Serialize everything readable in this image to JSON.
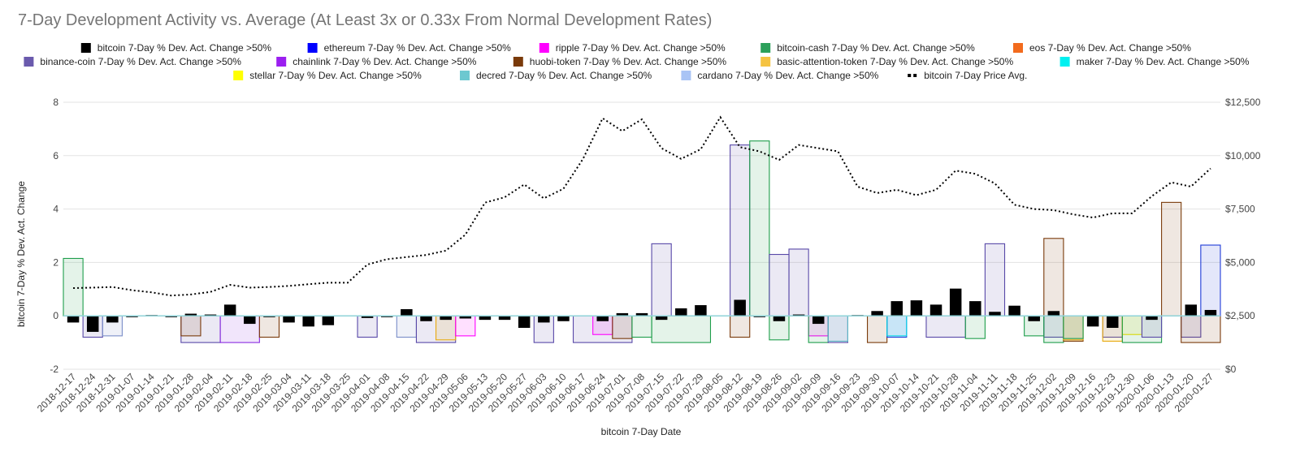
{
  "chart_data": {
    "type": "bar",
    "title": "7-Day Development Activity vs. Average (At Least 3x or 0.33x From Normal Development Rates)",
    "xlabel": "bitcoin 7-Day Date",
    "ylabel": "bitcoin 7-Day % Dev. Act. Change",
    "ylim": [
      -2,
      8
    ],
    "y_ticks": [
      "-2",
      "0",
      "2",
      "4",
      "6",
      "8"
    ],
    "y2lim": [
      0,
      12500
    ],
    "y2_ticks": [
      "$0",
      "$2,500",
      "$5,000",
      "$7,500",
      "$10,000",
      "$12,500"
    ],
    "dates": [
      "2018-12-17",
      "2018-12-24",
      "2018-12-31",
      "2019-01-07",
      "2019-01-14",
      "2019-01-21",
      "2019-01-28",
      "2019-02-04",
      "2019-02-11",
      "2019-02-18",
      "2019-02-25",
      "2019-03-04",
      "2019-03-11",
      "2019-03-18",
      "2019-03-25",
      "2019-04-01",
      "2019-04-08",
      "2019-04-15",
      "2019-04-22",
      "2019-04-29",
      "2019-05-06",
      "2019-05-13",
      "2019-05-20",
      "2019-05-27",
      "2019-06-03",
      "2019-06-10",
      "2019-06-17",
      "2019-06-24",
      "2019-07-01",
      "2019-07-08",
      "2019-07-15",
      "2019-07-22",
      "2019-07-29",
      "2019-08-05",
      "2019-08-12",
      "2019-08-19",
      "2019-08-26",
      "2019-09-02",
      "2019-09-09",
      "2019-09-16",
      "2019-09-23",
      "2019-09-30",
      "2019-10-07",
      "2019-10-14",
      "2019-10-21",
      "2019-10-28",
      "2019-11-04",
      "2019-11-11",
      "2019-11-18",
      "2019-11-25",
      "2019-12-02",
      "2019-12-09",
      "2019-12-16",
      "2019-12-23",
      "2019-12-30",
      "2020-01-06",
      "2020-01-13",
      "2020-01-20",
      "2020-01-27"
    ],
    "bitcoin_values": [
      -0.25,
      -0.6,
      -0.25,
      -0.05,
      0.03,
      -0.05,
      0.08,
      0.05,
      0.42,
      -0.3,
      -0.05,
      -0.25,
      -0.4,
      -0.35,
      0,
      -0.08,
      -0.05,
      0.25,
      -0.2,
      -0.15,
      -0.1,
      -0.15,
      -0.15,
      -0.45,
      -0.25,
      -0.2,
      0,
      -0.2,
      0.1,
      0.1,
      -0.15,
      0.28,
      0.4,
      0,
      0.6,
      -0.05,
      -0.2,
      0.05,
      -0.3,
      0,
      0.03,
      0.18,
      0.55,
      0.58,
      0.42,
      1.02,
      0.55,
      0.15,
      0.38,
      -0.2,
      0.18,
      0,
      -0.4,
      -0.45,
      0,
      -0.15,
      0,
      0.42,
      0.22
    ],
    "price_series": {
      "name": "bitcoin 7-Day Price Avg.",
      "values": [
        3800,
        3820,
        3850,
        3700,
        3600,
        3450,
        3500,
        3620,
        3950,
        3820,
        3850,
        3900,
        3980,
        4050,
        4050,
        4900,
        5150,
        5250,
        5350,
        5550,
        6300,
        7800,
        8050,
        8650,
        8000,
        8450,
        9850,
        11750,
        11150,
        11700,
        10350,
        9850,
        10300,
        11800,
        10400,
        10200,
        9800,
        10500,
        10350,
        10200,
        8550,
        8250,
        8400,
        8150,
        8400,
        9300,
        9150,
        8700,
        7700,
        7500,
        7450,
        7250,
        7100,
        7300,
        7300,
        8100,
        8750,
        8550,
        9400
      ]
    },
    "bands": [
      {
        "series": "bitcoin-cash",
        "color": "#1E9E4B",
        "start": 0,
        "end": 1,
        "value": 2.15
      },
      {
        "series": "binance-coin",
        "color": "#5848A8",
        "start": 1,
        "end": 2,
        "value": -0.8
      },
      {
        "series": "cardano",
        "color": "#7A8EC8",
        "start": 2,
        "end": 3,
        "value": -0.75
      },
      {
        "series": "binance-coin",
        "color": "#5848A8",
        "start": 6,
        "end": 8,
        "value": -1.0
      },
      {
        "series": "huobi-token",
        "color": "#7A3A0A",
        "start": 6,
        "end": 7,
        "value": -0.75
      },
      {
        "series": "chainlink",
        "color": "#8A2BE2",
        "start": 8,
        "end": 10,
        "value": -1.0
      },
      {
        "series": "huobi-token",
        "color": "#7A3A0A",
        "start": 10,
        "end": 11,
        "value": -0.8
      },
      {
        "series": "binance-coin",
        "color": "#5848A8",
        "start": 15,
        "end": 16,
        "value": -0.8
      },
      {
        "series": "cardano",
        "color": "#7A8EC8",
        "start": 17,
        "end": 18,
        "value": -0.8
      },
      {
        "series": "binance-coin",
        "color": "#5848A8",
        "start": 18,
        "end": 20,
        "value": -1.0
      },
      {
        "series": "basic-attention-token",
        "color": "#E8A90C",
        "start": 19,
        "end": 20,
        "value": -0.9
      },
      {
        "series": "ripple",
        "color": "#FF00FF",
        "start": 20,
        "end": 21,
        "value": -0.75
      },
      {
        "series": "binance-coin",
        "color": "#5848A8",
        "start": 24,
        "end": 25,
        "value": -1.0
      },
      {
        "series": "binance-coin",
        "color": "#5848A8",
        "start": 26,
        "end": 29,
        "value": -1.0
      },
      {
        "series": "ripple",
        "color": "#FF00FF",
        "start": 27,
        "end": 28,
        "value": -0.7
      },
      {
        "series": "huobi-token",
        "color": "#7A3A0A",
        "start": 28,
        "end": 29,
        "value": -0.85
      },
      {
        "series": "bitcoin-cash",
        "color": "#1E9E4B",
        "start": 29,
        "end": 30,
        "value": -0.8
      },
      {
        "series": "binance-coin",
        "color": "#5848A8",
        "start": 30,
        "end": 31,
        "value": 2.7
      },
      {
        "series": "bitcoin-cash",
        "color": "#1E9E4B",
        "start": 30,
        "end": 33,
        "value": -1.0
      },
      {
        "series": "huobi-token",
        "color": "#7A3A0A",
        "start": 34,
        "end": 35,
        "value": -0.8
      },
      {
        "series": "binance-coin",
        "color": "#5848A8",
        "start": 34,
        "end": 35,
        "value": 6.4
      },
      {
        "series": "bitcoin-cash",
        "color": "#1E9E4B",
        "start": 35,
        "end": 36,
        "value": 6.55
      },
      {
        "series": "bitcoin-cash",
        "color": "#1E9E4B",
        "start": 36,
        "end": 37,
        "value": -0.9
      },
      {
        "series": "binance-coin",
        "color": "#5848A8",
        "start": 36,
        "end": 37,
        "value": 2.3
      },
      {
        "series": "binance-coin",
        "color": "#5848A8",
        "start": 37,
        "end": 38,
        "value": 2.5
      },
      {
        "series": "ripple",
        "color": "#FF00FF",
        "start": 38,
        "end": 39,
        "value": -0.75
      },
      {
        "series": "bitcoin-cash",
        "color": "#1E9E4B",
        "start": 38,
        "end": 39,
        "value": -1.0
      },
      {
        "series": "binance-coin",
        "color": "#5848A8",
        "start": 39,
        "end": 40,
        "value": -1.0
      },
      {
        "series": "decred",
        "color": "#5CB8C4",
        "start": 39,
        "end": 40,
        "value": -0.95
      },
      {
        "series": "huobi-token",
        "color": "#7A3A0A",
        "start": 41,
        "end": 42,
        "value": -1.0
      },
      {
        "series": "ethereum",
        "color": "#1F3BD8",
        "start": 42,
        "end": 43,
        "value": -0.8
      },
      {
        "series": "maker",
        "color": "#00D8E8",
        "start": 42,
        "end": 43,
        "value": -0.75
      },
      {
        "series": "binance-coin",
        "color": "#5848A8",
        "start": 44,
        "end": 46,
        "value": -0.8
      },
      {
        "series": "bitcoin-cash",
        "color": "#1E9E4B",
        "start": 46,
        "end": 47,
        "value": -0.85
      },
      {
        "series": "binance-coin",
        "color": "#5848A8",
        "start": 47,
        "end": 48,
        "value": 2.7
      },
      {
        "series": "bitcoin-cash",
        "color": "#1E9E4B",
        "start": 49,
        "end": 50,
        "value": -0.75
      },
      {
        "series": "huobi-token",
        "color": "#7A3A0A",
        "start": 50,
        "end": 51,
        "value": 2.9
      },
      {
        "series": "binance-coin",
        "color": "#5848A8",
        "start": 50,
        "end": 51,
        "value": -0.8
      },
      {
        "series": "bitcoin-cash",
        "color": "#1E9E4B",
        "start": 50,
        "end": 51,
        "value": -1.0
      },
      {
        "series": "huobi-token",
        "color": "#7A3A0A",
        "start": 51,
        "end": 52,
        "value": -0.95
      },
      {
        "series": "basic-attention-token",
        "color": "#E8A90C",
        "start": 51,
        "end": 52,
        "value": -0.9
      },
      {
        "series": "bitcoin-cash",
        "color": "#1E9E4B",
        "start": 51,
        "end": 52,
        "value": -0.85
      },
      {
        "series": "binance-coin",
        "color": "#5848A8",
        "start": 53,
        "end": 54,
        "value": -0.8
      },
      {
        "series": "basic-attention-token",
        "color": "#E8A90C",
        "start": 53,
        "end": 54,
        "value": -0.95
      },
      {
        "series": "stellar",
        "color": "#F0E000",
        "start": 54,
        "end": 55,
        "value": -0.7
      },
      {
        "series": "bitcoin-cash",
        "color": "#1E9E4B",
        "start": 54,
        "end": 56,
        "value": -1.0
      },
      {
        "series": "binance-coin",
        "color": "#5848A8",
        "start": 55,
        "end": 56,
        "value": -0.8
      },
      {
        "series": "huobi-token",
        "color": "#7A3A0A",
        "start": 56,
        "end": 57,
        "value": 4.25
      },
      {
        "series": "binance-coin",
        "color": "#5848A8",
        "start": 57,
        "end": 58,
        "value": -0.8
      },
      {
        "series": "huobi-token",
        "color": "#7A3A0A",
        "start": 57,
        "end": 59,
        "value": -1.0
      },
      {
        "series": "ethereum",
        "color": "#1F3BD8",
        "start": 58,
        "end": 59,
        "value": 2.65
      }
    ],
    "legend": [
      {
        "label": "bitcoin 7-Day % Dev. Act. Change >50%",
        "color": "#000000"
      },
      {
        "label": "ethereum 7-Day % Dev. Act. Change >50%",
        "color": "#0000FF"
      },
      {
        "label": "ripple 7-Day % Dev. Act. Change >50%",
        "color": "#FF00FF"
      },
      {
        "label": "bitcoin-cash 7-Day % Dev. Act. Change >50%",
        "color": "#2CA05A"
      },
      {
        "label": "eos 7-Day % Dev. Act. Change >50%",
        "color": "#F26B1D"
      },
      {
        "label": "binance-coin 7-Day % Dev. Act. Change >50%",
        "color": "#6A5AAD"
      },
      {
        "label": "chainlink 7-Day % Dev. Act. Change >50%",
        "color": "#9B1FF0"
      },
      {
        "label": "huobi-token 7-Day % Dev. Act. Change >50%",
        "color": "#7A3A0A"
      },
      {
        "label": "basic-attention-token 7-Day % Dev. Act. Change >50%",
        "color": "#F5C342"
      },
      {
        "label": "maker 7-Day % Dev. Act. Change >50%",
        "color": "#00F0F0"
      },
      {
        "label": "stellar 7-Day % Dev. Act. Change >50%",
        "color": "#FFFF00"
      },
      {
        "label": "decred 7-Day % Dev. Act. Change >50%",
        "color": "#6CC8D0"
      },
      {
        "label": "cardano 7-Day % Dev. Act. Change >50%",
        "color": "#A9C4F5"
      },
      {
        "label": "bitcoin 7-Day Price Avg.",
        "color": "#000000",
        "dotted": true
      }
    ],
    "grid": true,
    "legend_position": "top"
  }
}
